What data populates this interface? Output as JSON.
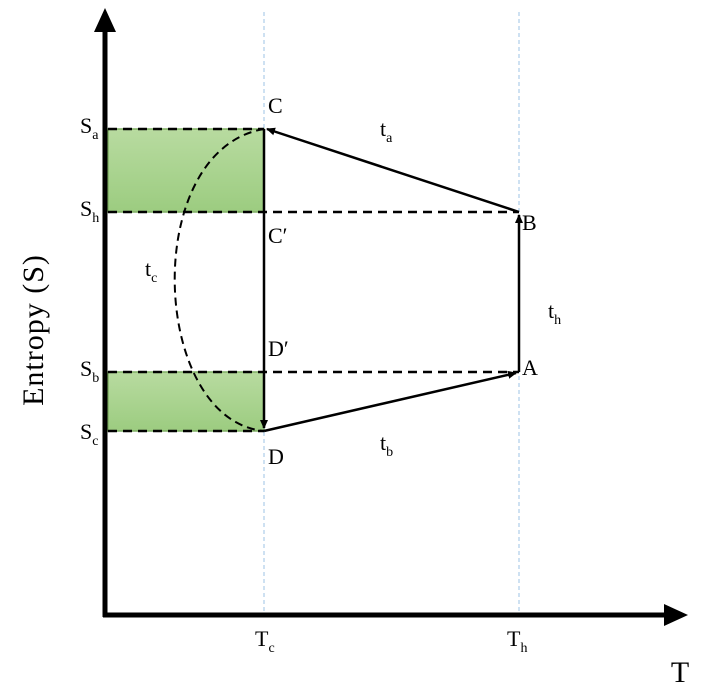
{
  "axes": {
    "y_label": "Entropy (S)",
    "x_label": "T"
  },
  "entropy_levels": [
    {
      "key": "a",
      "letter": "S",
      "sub": "a"
    },
    {
      "key": "h",
      "letter": "S",
      "sub": "h"
    },
    {
      "key": "b",
      "letter": "S",
      "sub": "b"
    },
    {
      "key": "c",
      "letter": "S",
      "sub": "c"
    }
  ],
  "temperatures": [
    {
      "key": "c",
      "letter": "T",
      "sub": "c"
    },
    {
      "key": "h",
      "letter": "T",
      "sub": "h"
    }
  ],
  "points": {
    "A": "A",
    "B": "B",
    "C": "C",
    "C_prime": "C′",
    "D": "D",
    "D_prime": "D′"
  },
  "process_times": [
    {
      "key": "a",
      "letter": "t",
      "sub": "a"
    },
    {
      "key": "h",
      "letter": "t",
      "sub": "h"
    },
    {
      "key": "b",
      "letter": "t",
      "sub": "b"
    },
    {
      "key": "c",
      "letter": "t",
      "sub": "c"
    }
  ],
  "colors": {
    "axis": "#000000",
    "guide": "#9dc3e6",
    "fill": "#a9d18e",
    "fill_stroke": "#7fae63"
  }
}
